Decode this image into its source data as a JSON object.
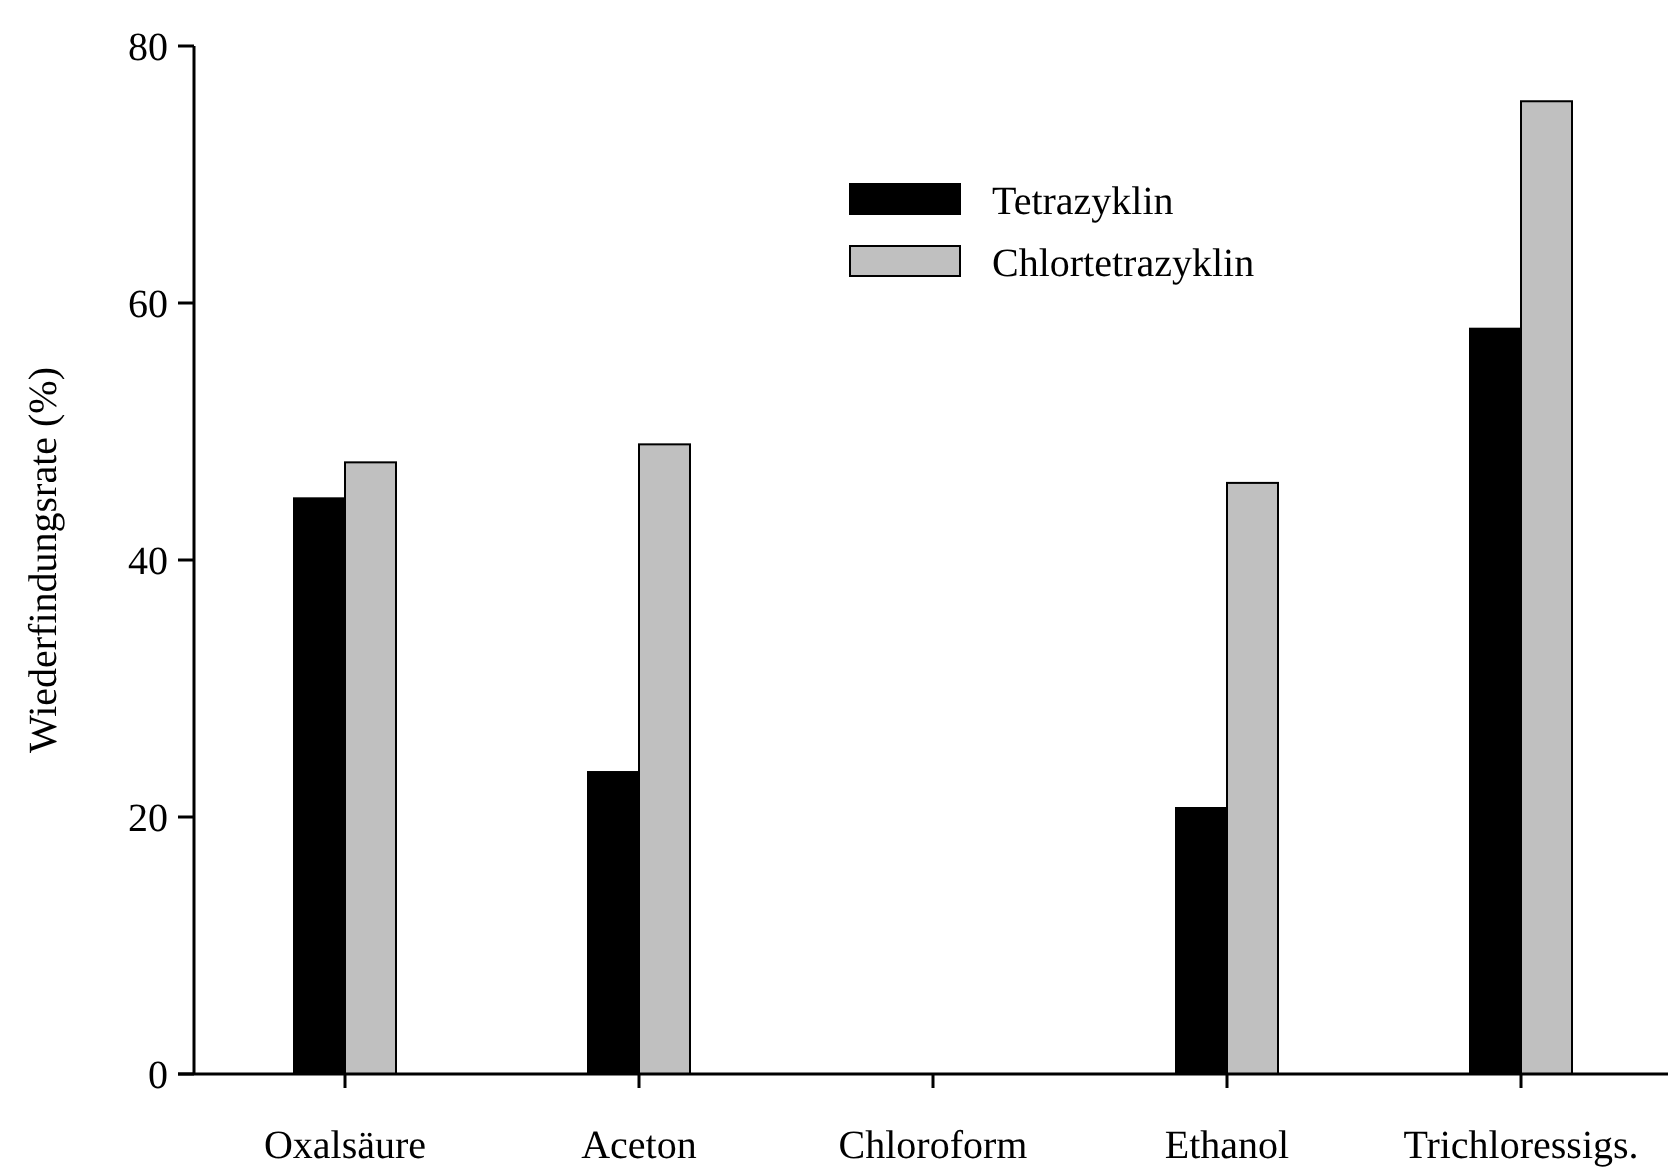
{
  "chart_data": {
    "type": "bar",
    "ylabel": "Wiederfindungsrate (%)",
    "categories": [
      "Oxalsäure",
      "Aceton",
      "Chloroform",
      "Ethanol",
      "Trichloressigs."
    ],
    "series": [
      {
        "name": "Tetrazyklin",
        "color": "#000000",
        "values": [
          44.8,
          23.5,
          0,
          20.7,
          58.0
        ]
      },
      {
        "name": "Chlortetrazyklin",
        "color": "#c0c0c0",
        "values": [
          47.6,
          49.0,
          0,
          46.0,
          75.7
        ]
      }
    ],
    "ylim": [
      0,
      80
    ],
    "yticks": [
      0,
      20,
      40,
      60,
      80
    ],
    "grid": false,
    "legend": "top"
  }
}
